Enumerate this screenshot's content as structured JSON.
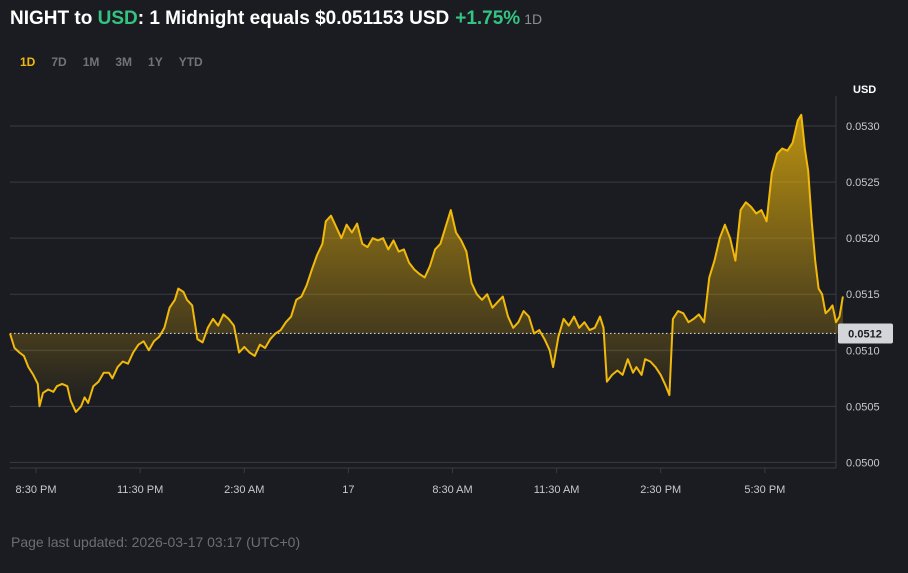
{
  "header": {
    "base": "NIGHT",
    "to": " to ",
    "quote": "USD",
    "rest": ": 1 Midnight equals $0.051153 USD",
    "change": "+1.75%",
    "period": "1D"
  },
  "tabs": [
    "1D",
    "7D",
    "1M",
    "3M",
    "1Y",
    "YTD"
  ],
  "active_tab": "1D",
  "footer": {
    "text": "Page last updated: 2026-03-17 03:17 (UTC+0)"
  },
  "colors": {
    "line": "#f0b90b",
    "positive": "#33c481",
    "background": "#1b1c21",
    "grid": "#3a3b40",
    "axis_text": "#c8c9cc",
    "current_price_label_bg": "#d4d5d8"
  },
  "chart_data": {
    "type": "area",
    "ylabel": "USD",
    "ylim": [
      0.04995,
      0.05325
    ],
    "y_ticks": [
      "0.0500",
      "0.0505",
      "0.0510",
      "0.0515",
      "0.0520",
      "0.0525",
      "0.0530"
    ],
    "x_tick_labels": [
      "8:30 PM",
      "11:30 PM",
      "2:30 AM",
      "17",
      "8:30 AM",
      "11:30 AM",
      "2:30 PM",
      "5:30 PM"
    ],
    "x_tick_hours": [
      0.75,
      3.75,
      6.75,
      9.75,
      12.75,
      15.75,
      18.75,
      21.75
    ],
    "x_range_hours": [
      0,
      23.8
    ],
    "reference_value": 0.05115,
    "current_price_label": "0.0512",
    "series": [
      {
        "values": [
          [
            0.0,
            0.05115
          ],
          [
            0.13,
            0.05102
          ],
          [
            0.27,
            0.05098
          ],
          [
            0.4,
            0.05095
          ],
          [
            0.53,
            0.05085
          ],
          [
            0.67,
            0.05078
          ],
          [
            0.8,
            0.0507
          ],
          [
            0.85,
            0.0505
          ],
          [
            0.95,
            0.05062
          ],
          [
            1.1,
            0.05065
          ],
          [
            1.25,
            0.05063
          ],
          [
            1.35,
            0.05068
          ],
          [
            1.5,
            0.0507
          ],
          [
            1.65,
            0.05068
          ],
          [
            1.75,
            0.05055
          ],
          [
            1.9,
            0.05045
          ],
          [
            2.05,
            0.0505
          ],
          [
            2.15,
            0.05058
          ],
          [
            2.25,
            0.05053
          ],
          [
            2.4,
            0.05068
          ],
          [
            2.55,
            0.05072
          ],
          [
            2.7,
            0.0508
          ],
          [
            2.85,
            0.0508
          ],
          [
            2.95,
            0.05075
          ],
          [
            3.1,
            0.05085
          ],
          [
            3.25,
            0.0509
          ],
          [
            3.4,
            0.05088
          ],
          [
            3.55,
            0.05098
          ],
          [
            3.7,
            0.05105
          ],
          [
            3.85,
            0.05108
          ],
          [
            4.0,
            0.051
          ],
          [
            4.15,
            0.05108
          ],
          [
            4.3,
            0.05112
          ],
          [
            4.45,
            0.0512
          ],
          [
            4.6,
            0.05138
          ],
          [
            4.75,
            0.05145
          ],
          [
            4.85,
            0.05155
          ],
          [
            5.0,
            0.05152
          ],
          [
            5.1,
            0.05145
          ],
          [
            5.25,
            0.0514
          ],
          [
            5.4,
            0.0511
          ],
          [
            5.55,
            0.05107
          ],
          [
            5.7,
            0.0512
          ],
          [
            5.85,
            0.05128
          ],
          [
            6.0,
            0.05122
          ],
          [
            6.15,
            0.05132
          ],
          [
            6.3,
            0.05128
          ],
          [
            6.45,
            0.05122
          ],
          [
            6.6,
            0.05098
          ],
          [
            6.75,
            0.05103
          ],
          [
            6.9,
            0.05098
          ],
          [
            7.05,
            0.05095
          ],
          [
            7.2,
            0.05105
          ],
          [
            7.35,
            0.05102
          ],
          [
            7.5,
            0.0511
          ],
          [
            7.65,
            0.05115
          ],
          [
            7.8,
            0.05118
          ],
          [
            7.95,
            0.05125
          ],
          [
            8.1,
            0.0513
          ],
          [
            8.25,
            0.05145
          ],
          [
            8.4,
            0.05148
          ],
          [
            8.55,
            0.05158
          ],
          [
            8.7,
            0.05172
          ],
          [
            8.85,
            0.05185
          ],
          [
            9.0,
            0.05195
          ],
          [
            9.1,
            0.05215
          ],
          [
            9.25,
            0.0522
          ],
          [
            9.4,
            0.0521
          ],
          [
            9.55,
            0.052
          ],
          [
            9.7,
            0.05212
          ],
          [
            9.85,
            0.05205
          ],
          [
            10.0,
            0.05213
          ],
          [
            10.15,
            0.05195
          ],
          [
            10.3,
            0.05192
          ],
          [
            10.45,
            0.052
          ],
          [
            10.6,
            0.05198
          ],
          [
            10.75,
            0.052
          ],
          [
            10.9,
            0.0519
          ],
          [
            11.05,
            0.05198
          ],
          [
            11.2,
            0.05188
          ],
          [
            11.35,
            0.0519
          ],
          [
            11.5,
            0.05178
          ],
          [
            11.65,
            0.05172
          ],
          [
            11.8,
            0.05168
          ],
          [
            11.95,
            0.05165
          ],
          [
            12.1,
            0.05175
          ],
          [
            12.25,
            0.0519
          ],
          [
            12.4,
            0.05195
          ],
          [
            12.55,
            0.0521
          ],
          [
            12.7,
            0.05225
          ],
          [
            12.85,
            0.05205
          ],
          [
            13.0,
            0.05198
          ],
          [
            13.15,
            0.05188
          ],
          [
            13.3,
            0.0516
          ],
          [
            13.45,
            0.0515
          ],
          [
            13.6,
            0.05145
          ],
          [
            13.75,
            0.0515
          ],
          [
            13.9,
            0.05138
          ],
          [
            14.05,
            0.05143
          ],
          [
            14.2,
            0.05148
          ],
          [
            14.35,
            0.0513
          ],
          [
            14.5,
            0.0512
          ],
          [
            14.65,
            0.05125
          ],
          [
            14.8,
            0.05135
          ],
          [
            14.95,
            0.0513
          ],
          [
            15.1,
            0.05115
          ],
          [
            15.25,
            0.05118
          ],
          [
            15.4,
            0.0511
          ],
          [
            15.55,
            0.051
          ],
          [
            15.65,
            0.05085
          ],
          [
            15.8,
            0.05112
          ],
          [
            15.95,
            0.05128
          ],
          [
            16.1,
            0.05122
          ],
          [
            16.25,
            0.0513
          ],
          [
            16.4,
            0.0512
          ],
          [
            16.55,
            0.05125
          ],
          [
            16.7,
            0.05118
          ],
          [
            16.85,
            0.0512
          ],
          [
            17.0,
            0.0513
          ],
          [
            17.1,
            0.0512
          ],
          [
            17.2,
            0.05072
          ],
          [
            17.35,
            0.05078
          ],
          [
            17.5,
            0.05082
          ],
          [
            17.65,
            0.05078
          ],
          [
            17.8,
            0.05092
          ],
          [
            17.95,
            0.0508
          ],
          [
            18.05,
            0.05085
          ],
          [
            18.2,
            0.05078
          ],
          [
            18.3,
            0.05092
          ],
          [
            18.45,
            0.0509
          ],
          [
            18.6,
            0.05085
          ],
          [
            18.75,
            0.05078
          ],
          [
            18.9,
            0.05068
          ],
          [
            19.0,
            0.0506
          ],
          [
            19.1,
            0.05128
          ],
          [
            19.25,
            0.05135
          ],
          [
            19.4,
            0.05133
          ],
          [
            19.55,
            0.05125
          ],
          [
            19.7,
            0.05128
          ],
          [
            19.85,
            0.05132
          ],
          [
            20.0,
            0.05125
          ],
          [
            20.15,
            0.05165
          ],
          [
            20.3,
            0.0518
          ],
          [
            20.45,
            0.052
          ],
          [
            20.6,
            0.05212
          ],
          [
            20.75,
            0.052
          ],
          [
            20.9,
            0.0518
          ],
          [
            21.05,
            0.05225
          ],
          [
            21.2,
            0.05232
          ],
          [
            21.35,
            0.05228
          ],
          [
            21.5,
            0.05222
          ],
          [
            21.65,
            0.05225
          ],
          [
            21.8,
            0.05215
          ],
          [
            21.95,
            0.05258
          ],
          [
            22.1,
            0.05275
          ],
          [
            22.25,
            0.0528
          ],
          [
            22.4,
            0.05278
          ],
          [
            22.55,
            0.05285
          ],
          [
            22.7,
            0.05305
          ],
          [
            22.8,
            0.0531
          ],
          [
            22.9,
            0.0528
          ],
          [
            23.0,
            0.0526
          ],
          [
            23.1,
            0.05215
          ],
          [
            23.2,
            0.0518
          ],
          [
            23.3,
            0.05155
          ],
          [
            23.4,
            0.0515
          ],
          [
            23.5,
            0.05133
          ],
          [
            23.6,
            0.05136
          ],
          [
            23.7,
            0.0514
          ],
          [
            23.8,
            0.05125
          ],
          [
            23.9,
            0.0513
          ],
          [
            24.0,
            0.05148
          ]
        ]
      }
    ]
  }
}
